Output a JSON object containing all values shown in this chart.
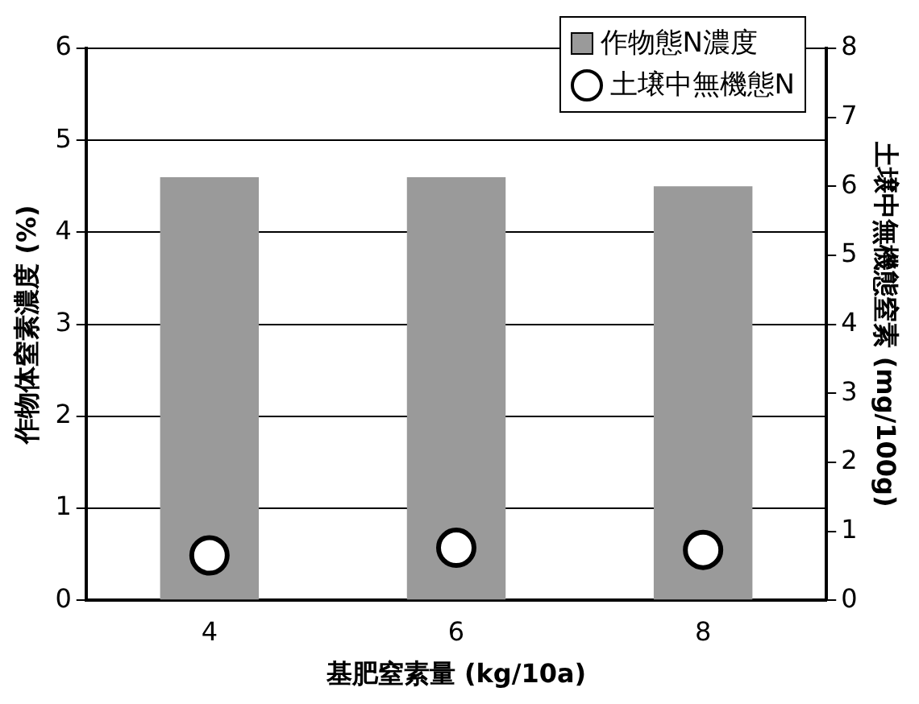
{
  "chart_data": {
    "type": "bar",
    "xlabel": "基肥窒素量 (kg/10a)",
    "ylabel": "作物体窒素濃度 (%)",
    "y2label": "土壌中無機態窒素 (mg/100g)",
    "categories": [
      "4",
      "6",
      "8"
    ],
    "series": [
      {
        "name": "作物態N濃度",
        "color": "#9a9a9a",
        "values": [
          4.6,
          4.6,
          4.5
        ]
      },
      {
        "name": "土壌中無機態N",
        "type": "scatter",
        "axis": "y2",
        "color": "#ffffff",
        "marker": "circle",
        "x": [
          "4",
          "6",
          "8"
        ],
        "values": [
          0.65,
          0.76,
          0.73
        ]
      }
    ],
    "ylim": [
      0,
      6
    ],
    "yticks": [
      0,
      1,
      2,
      3,
      4,
      5,
      6
    ],
    "y2lim": [
      0,
      8
    ],
    "y2ticks": [
      0,
      1,
      2,
      3,
      4,
      5,
      6,
      7,
      8
    ],
    "grid": "y",
    "legend": "top right"
  }
}
